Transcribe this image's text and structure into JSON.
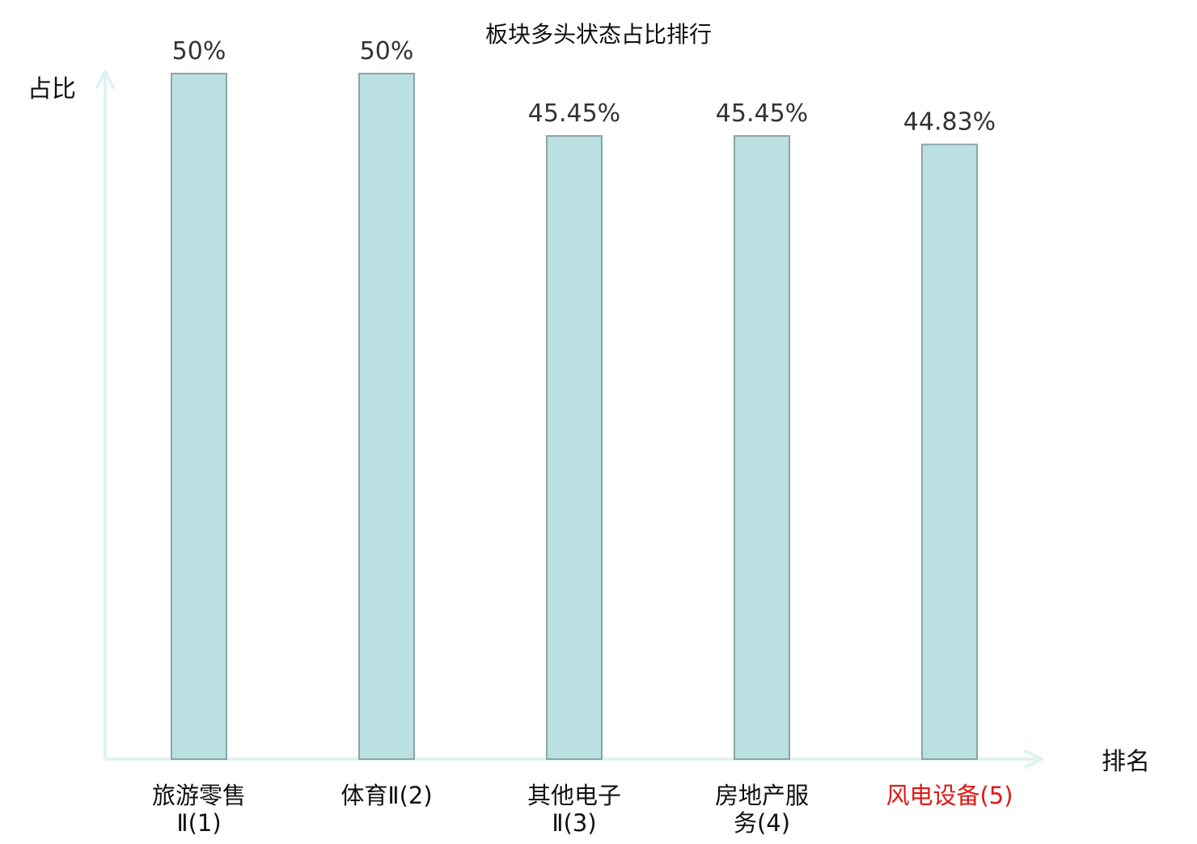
{
  "chart_data": {
    "type": "bar",
    "title": "板块多头状态占比排行",
    "ylabel": "占比",
    "xlabel": "排名",
    "ylim": [
      0,
      50
    ],
    "grid": false,
    "legend": "none",
    "categories": [
      {
        "lines": [
          "旅游零售",
          "Ⅱ(1)"
        ],
        "highlight": false
      },
      {
        "lines": [
          "体育Ⅱ(2)"
        ],
        "highlight": false
      },
      {
        "lines": [
          "其他电子",
          "Ⅱ(3)"
        ],
        "highlight": false
      },
      {
        "lines": [
          "房地产服",
          "务(4)"
        ],
        "highlight": false
      },
      {
        "lines": [
          "风电设备(5)"
        ],
        "highlight": true
      }
    ],
    "values": [
      50,
      50,
      45.45,
      45.45,
      44.83
    ],
    "value_labels": [
      "50%",
      "50%",
      "45.45%",
      "45.45%",
      "44.83%"
    ],
    "colors": {
      "bar_fill": "#bbe0e1",
      "bar_stroke": "#8aa5a6",
      "axis": "#e0f2f0",
      "text": "#333333",
      "highlight": "#e01818"
    }
  }
}
